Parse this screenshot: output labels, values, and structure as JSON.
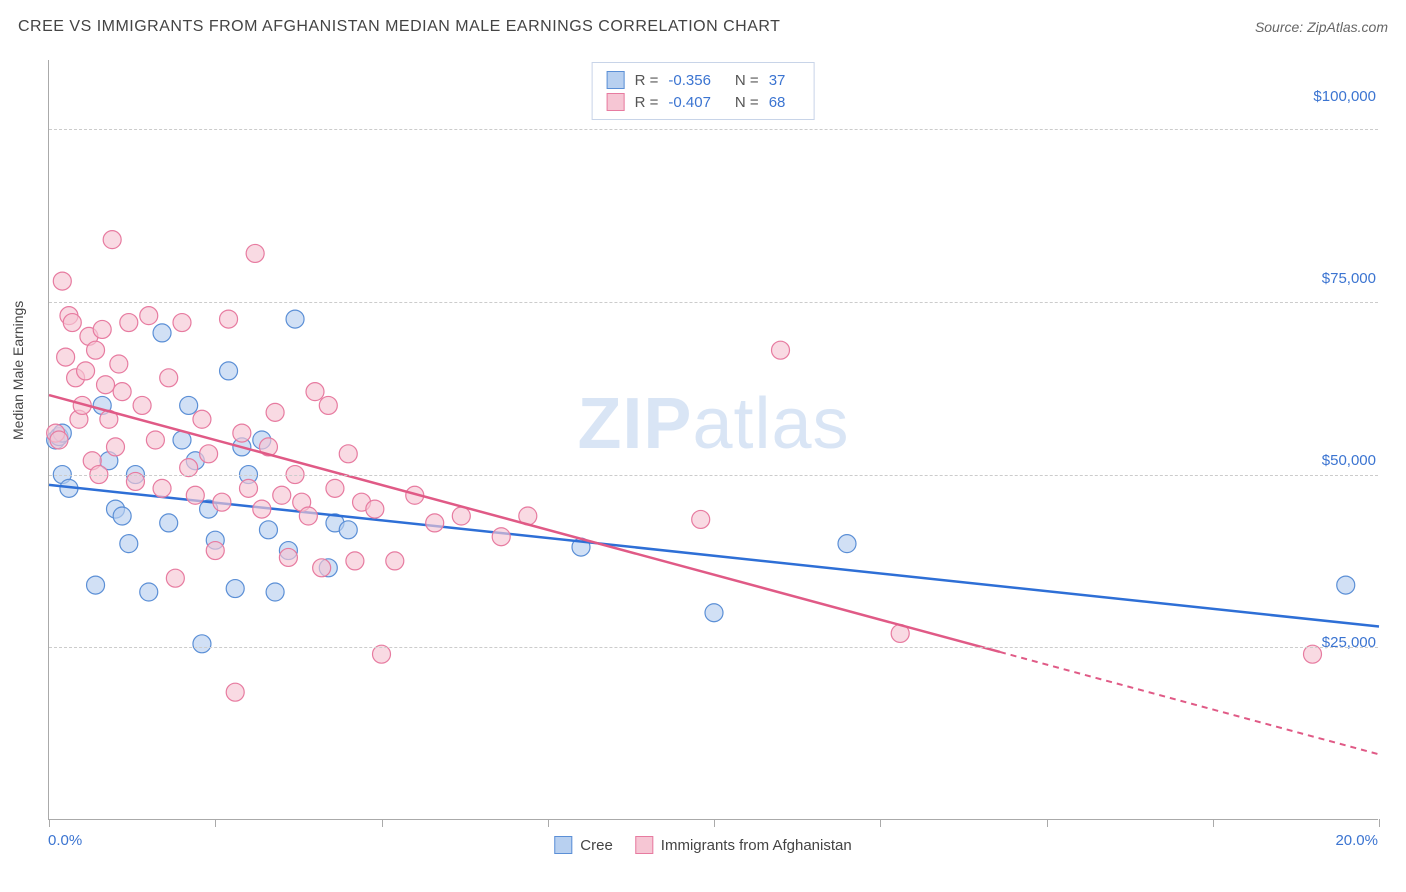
{
  "header": {
    "title": "CREE VS IMMIGRANTS FROM AFGHANISTAN MEDIAN MALE EARNINGS CORRELATION CHART",
    "source_prefix": "Source: ",
    "source_name": "ZipAtlas.com"
  },
  "watermark": {
    "zip": "ZIP",
    "atlas": "atlas"
  },
  "chart": {
    "type": "scatter",
    "ylabel": "Median Male Earnings",
    "xlim": [
      0,
      20
    ],
    "ylim": [
      0,
      110000
    ],
    "x_min_label": "0.0%",
    "x_max_label": "20.0%",
    "y_ticks": [
      {
        "v": 25000,
        "label": "$25,000"
      },
      {
        "v": 50000,
        "label": "$50,000"
      },
      {
        "v": 75000,
        "label": "$75,000"
      },
      {
        "v": 100000,
        "label": "$100,000"
      }
    ],
    "x_tick_positions": [
      0,
      2.5,
      5,
      7.5,
      10,
      12.5,
      15,
      17.5,
      20
    ],
    "background_color": "#ffffff",
    "grid_color": "#cccccc",
    "series": [
      {
        "name": "Cree",
        "color_fill": "#b8d0f0",
        "color_stroke": "#5b8fd6",
        "line_color": "#2e6fd6",
        "marker_radius": 9,
        "fill_opacity": 0.65,
        "R": "-0.356",
        "N": "37",
        "trend": {
          "x1": 0,
          "y1": 48500,
          "x2": 20,
          "y2": 28000,
          "dash_from_x": 20
        },
        "points": [
          [
            0.1,
            55000
          ],
          [
            0.15,
            55500
          ],
          [
            0.2,
            56000
          ],
          [
            0.2,
            50000
          ],
          [
            0.3,
            48000
          ],
          [
            0.7,
            34000
          ],
          [
            0.8,
            60000
          ],
          [
            0.9,
            52000
          ],
          [
            1.0,
            45000
          ],
          [
            1.1,
            44000
          ],
          [
            1.2,
            40000
          ],
          [
            1.3,
            50000
          ],
          [
            1.5,
            33000
          ],
          [
            1.7,
            70500
          ],
          [
            1.8,
            43000
          ],
          [
            2.0,
            55000
          ],
          [
            2.1,
            60000
          ],
          [
            2.2,
            52000
          ],
          [
            2.3,
            25500
          ],
          [
            2.4,
            45000
          ],
          [
            2.5,
            40500
          ],
          [
            2.7,
            65000
          ],
          [
            2.8,
            33500
          ],
          [
            2.9,
            54000
          ],
          [
            3.0,
            50000
          ],
          [
            3.2,
            55000
          ],
          [
            3.3,
            42000
          ],
          [
            3.4,
            33000
          ],
          [
            3.6,
            39000
          ],
          [
            3.7,
            72500
          ],
          [
            4.2,
            36500
          ],
          [
            4.3,
            43000
          ],
          [
            4.5,
            42000
          ],
          [
            8.0,
            39500
          ],
          [
            10.0,
            30000
          ],
          [
            12.0,
            40000
          ],
          [
            19.5,
            34000
          ]
        ]
      },
      {
        "name": "Immigrants from Afghanistan",
        "color_fill": "#f6c6d4",
        "color_stroke": "#e77ba0",
        "line_color": "#e05a86",
        "marker_radius": 9,
        "fill_opacity": 0.65,
        "R": "-0.407",
        "N": "68",
        "trend": {
          "x1": 0,
          "y1": 61500,
          "x2": 20,
          "y2": 9500,
          "dash_from_x": 14.3
        },
        "points": [
          [
            0.1,
            56000
          ],
          [
            0.15,
            55000
          ],
          [
            0.2,
            78000
          ],
          [
            0.25,
            67000
          ],
          [
            0.3,
            73000
          ],
          [
            0.35,
            72000
          ],
          [
            0.4,
            64000
          ],
          [
            0.45,
            58000
          ],
          [
            0.5,
            60000
          ],
          [
            0.55,
            65000
          ],
          [
            0.6,
            70000
          ],
          [
            0.65,
            52000
          ],
          [
            0.7,
            68000
          ],
          [
            0.75,
            50000
          ],
          [
            0.8,
            71000
          ],
          [
            0.85,
            63000
          ],
          [
            0.9,
            58000
          ],
          [
            0.95,
            84000
          ],
          [
            1.0,
            54000
          ],
          [
            1.05,
            66000
          ],
          [
            1.1,
            62000
          ],
          [
            1.2,
            72000
          ],
          [
            1.3,
            49000
          ],
          [
            1.4,
            60000
          ],
          [
            1.5,
            73000
          ],
          [
            1.6,
            55000
          ],
          [
            1.7,
            48000
          ],
          [
            1.8,
            64000
          ],
          [
            1.9,
            35000
          ],
          [
            2.0,
            72000
          ],
          [
            2.1,
            51000
          ],
          [
            2.2,
            47000
          ],
          [
            2.3,
            58000
          ],
          [
            2.4,
            53000
          ],
          [
            2.5,
            39000
          ],
          [
            2.6,
            46000
          ],
          [
            2.7,
            72500
          ],
          [
            2.8,
            18500
          ],
          [
            2.9,
            56000
          ],
          [
            3.0,
            48000
          ],
          [
            3.1,
            82000
          ],
          [
            3.2,
            45000
          ],
          [
            3.3,
            54000
          ],
          [
            3.4,
            59000
          ],
          [
            3.5,
            47000
          ],
          [
            3.6,
            38000
          ],
          [
            3.7,
            50000
          ],
          [
            3.8,
            46000
          ],
          [
            3.9,
            44000
          ],
          [
            4.0,
            62000
          ],
          [
            4.1,
            36500
          ],
          [
            4.2,
            60000
          ],
          [
            4.3,
            48000
          ],
          [
            4.5,
            53000
          ],
          [
            4.6,
            37500
          ],
          [
            4.7,
            46000
          ],
          [
            4.9,
            45000
          ],
          [
            5.0,
            24000
          ],
          [
            5.2,
            37500
          ],
          [
            5.5,
            47000
          ],
          [
            5.8,
            43000
          ],
          [
            6.2,
            44000
          ],
          [
            6.8,
            41000
          ],
          [
            7.2,
            44000
          ],
          [
            9.8,
            43500
          ],
          [
            11.0,
            68000
          ],
          [
            12.8,
            27000
          ],
          [
            19.0,
            24000
          ]
        ]
      }
    ]
  },
  "legend_bottom": {
    "items": [
      "Cree",
      "Immigrants from Afghanistan"
    ]
  }
}
